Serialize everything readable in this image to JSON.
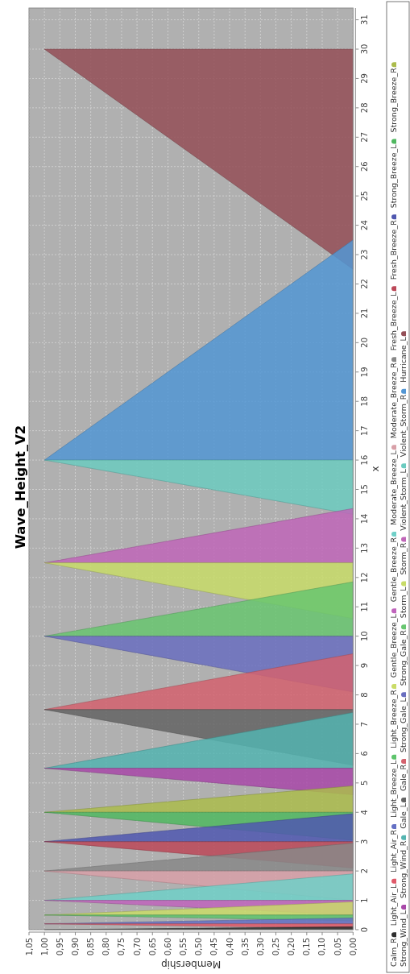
{
  "chart_data": {
    "type": "area",
    "orientation": "horizontal",
    "title": "Wave_Height_V2",
    "xlabel": "Membership",
    "ylabel": "x",
    "xlim": [
      1.05,
      0
    ],
    "xticks": [
      {
        "value": 1.05,
        "label": "1,05"
      },
      {
        "value": 1,
        "label": "1,00"
      },
      {
        "value": 0.95,
        "label": "0,95"
      },
      {
        "value": 0.9,
        "label": "0,90"
      },
      {
        "value": 0.85,
        "label": "0,85"
      },
      {
        "value": 0.8,
        "label": "0,80"
      },
      {
        "value": 0.75,
        "label": "0,75"
      },
      {
        "value": 0.7,
        "label": "0,70"
      },
      {
        "value": 0.65,
        "label": "0,65"
      },
      {
        "value": 0.6,
        "label": "0,60"
      },
      {
        "value": 0.55,
        "label": "0,55"
      },
      {
        "value": 0.5,
        "label": "0,50"
      },
      {
        "value": 0.45,
        "label": "0,45"
      },
      {
        "value": 0.4,
        "label": "0,40"
      },
      {
        "value": 0.35,
        "label": "0,35"
      },
      {
        "value": 0.3,
        "label": "0,30"
      },
      {
        "value": 0.25,
        "label": "0,25"
      },
      {
        "value": 0.2,
        "label": "0,20"
      },
      {
        "value": 0.15,
        "label": "0,15"
      },
      {
        "value": 0.1,
        "label": "0,10"
      },
      {
        "value": 0.05,
        "label": "0,05"
      },
      {
        "value": 0,
        "label": "0,00"
      }
    ],
    "ylim": [
      0,
      31.4
    ],
    "yticks": [
      0,
      1,
      2,
      3,
      4,
      5,
      6,
      7,
      8,
      9,
      10,
      11,
      12,
      13,
      14,
      15,
      16,
      17,
      18,
      19,
      20,
      21,
      22,
      23,
      24,
      25,
      26,
      27,
      28,
      29,
      30,
      31
    ],
    "grid": true,
    "legend": "right",
    "series": [
      {
        "name": "Calm_R",
        "color": "#2e2e2e",
        "x": [
          0,
          0.1
        ],
        "values": [
          1,
          0
        ]
      },
      {
        "name": "Light_Air_L",
        "color": "#e05a6a",
        "x": [
          0.05,
          0.2
        ],
        "values": [
          0,
          1
        ]
      },
      {
        "name": "Light_Air_R",
        "color": "#6470c4",
        "x": [
          0.2,
          0.4
        ],
        "values": [
          1,
          0
        ]
      },
      {
        "name": "Light_Breeze_L",
        "color": "#5ec46c",
        "x": [
          0.3,
          0.5
        ],
        "values": [
          0,
          1
        ]
      },
      {
        "name": "Light_Breeze_R",
        "color": "#cadc68",
        "x": [
          0.5,
          0.95
        ],
        "values": [
          1,
          0
        ]
      },
      {
        "name": "Gentle_Breeze_L",
        "color": "#c064bc",
        "x": [
          0.5,
          1
        ],
        "values": [
          0,
          1
        ]
      },
      {
        "name": "Gentle_Breeze_R",
        "color": "#70d0c8",
        "x": [
          1,
          1.9
        ],
        "values": [
          1,
          0
        ]
      },
      {
        "name": "Moderate_Breeze_L",
        "color": "#d8a0a8",
        "x": [
          1,
          2
        ],
        "values": [
          0,
          1
        ]
      },
      {
        "name": "Moderate_Breeze_R",
        "color": "#888888",
        "x": [
          2,
          2.95
        ],
        "values": [
          1,
          0
        ]
      },
      {
        "name": "Fresh_Breeze_L",
        "color": "#bc4858",
        "x": [
          2.1,
          3
        ],
        "values": [
          0,
          1
        ]
      },
      {
        "name": "Fresh_Breeze_R",
        "color": "#5058b0",
        "x": [
          3,
          3.95
        ],
        "values": [
          1,
          0
        ]
      },
      {
        "name": "Strong_Breeze_L",
        "color": "#50b860",
        "x": [
          3.05,
          4
        ],
        "values": [
          0,
          1
        ]
      },
      {
        "name": "Strong_Breeze_R",
        "color": "#acbc4c",
        "x": [
          4,
          4.9
        ],
        "values": [
          1,
          0
        ]
      },
      {
        "name": "Strong_Wind_L",
        "color": "#a848a8",
        "x": [
          4.6,
          5.5
        ],
        "values": [
          0,
          1
        ]
      },
      {
        "name": "Strong_Wind_R",
        "color": "#54b4b0",
        "x": [
          5.5,
          7.4
        ],
        "values": [
          1,
          0
        ]
      },
      {
        "name": "Gale_L",
        "color": "#646464",
        "x": [
          5.6,
          7.5
        ],
        "values": [
          0,
          1
        ]
      },
      {
        "name": "Gale_R",
        "color": "#d4626e",
        "x": [
          7.5,
          9.4
        ],
        "values": [
          1,
          0
        ]
      },
      {
        "name": "Strong_Gale_L",
        "color": "#6a6fc0",
        "x": [
          8.1,
          10
        ],
        "values": [
          0,
          1
        ]
      },
      {
        "name": "Strong_Gale_R",
        "color": "#68c670",
        "x": [
          10,
          11.85
        ],
        "values": [
          1,
          0
        ]
      },
      {
        "name": "Storm_L",
        "color": "#c8dc68",
        "x": [
          10.6,
          12.5
        ],
        "values": [
          0,
          1
        ]
      },
      {
        "name": "Storm_R",
        "color": "#c066b8",
        "x": [
          12.5,
          14.35
        ],
        "values": [
          1,
          0
        ]
      },
      {
        "name": "Violent_Storm_L",
        "color": "#6ccbc0",
        "x": [
          14.15,
          16
        ],
        "values": [
          0,
          1
        ]
      },
      {
        "name": "Violent_Storm_R",
        "color": "#5296d4",
        "x": [
          16,
          23.5
        ],
        "values": [
          1,
          0
        ]
      },
      {
        "name": "Hurricane_L",
        "color": "#944f57",
        "x": [
          22.5,
          30
        ],
        "values": [
          0,
          1
        ]
      }
    ]
  }
}
